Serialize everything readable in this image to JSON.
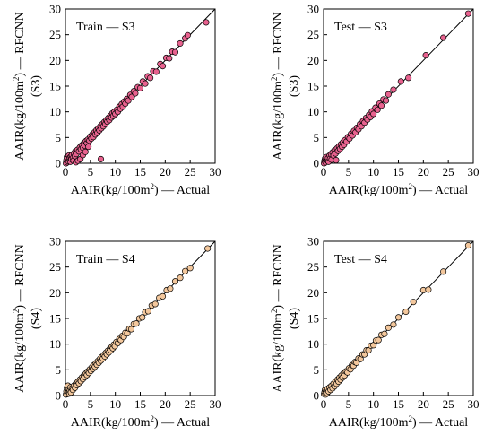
{
  "figure": {
    "ylabel_main": "AAIR(kg/100m",
    "ylabel_sup": "2",
    "ylabel_tail": ") — RFCNN",
    "xlabel_main": "AAIR(kg/100m",
    "xlabel_sup": "2",
    "xlabel_tail": ") — Actual"
  },
  "chart_data": [
    {
      "type": "scatter",
      "title": "Train — S3",
      "ylabel_sub": "(S3)",
      "xlim": [
        0,
        30
      ],
      "ylim": [
        0,
        30
      ],
      "xticks": [
        "0",
        "5",
        "10",
        "15",
        "20",
        "25",
        "30"
      ],
      "yticks": [
        "0",
        "5",
        "10",
        "15",
        "20",
        "25",
        "30"
      ],
      "marker_color": "#e8628f",
      "diagonal": true,
      "points": [
        [
          0.1,
          0.0
        ],
        [
          0.2,
          0.6
        ],
        [
          0.3,
          1.2
        ],
        [
          0.4,
          0.2
        ],
        [
          0.5,
          1.0
        ],
        [
          0.6,
          0.4
        ],
        [
          0.7,
          1.5
        ],
        [
          0.8,
          0.7
        ],
        [
          0.9,
          1.1
        ],
        [
          1.0,
          0.3
        ],
        [
          1.1,
          1.3
        ],
        [
          1.2,
          0.8
        ],
        [
          1.3,
          1.6
        ],
        [
          1.5,
          1.0
        ],
        [
          1.6,
          0.5
        ],
        [
          1.7,
          1.9
        ],
        [
          1.9,
          1.4
        ],
        [
          2.0,
          2.3
        ],
        [
          2.1,
          0.2
        ],
        [
          2.2,
          1.8
        ],
        [
          2.4,
          2.6
        ],
        [
          2.5,
          0.5
        ],
        [
          2.7,
          2.3
        ],
        [
          2.9,
          3.1
        ],
        [
          3.0,
          0.8
        ],
        [
          3.1,
          2.7
        ],
        [
          3.3,
          3.5
        ],
        [
          3.5,
          3.0
        ],
        [
          3.5,
          1.6
        ],
        [
          3.7,
          3.9
        ],
        [
          3.9,
          3.4
        ],
        [
          4.0,
          2.2
        ],
        [
          4.1,
          4.3
        ],
        [
          4.3,
          3.9
        ],
        [
          4.5,
          4.6
        ],
        [
          4.6,
          3.2
        ],
        [
          4.8,
          4.4
        ],
        [
          5.0,
          5.2
        ],
        [
          5.2,
          4.8
        ],
        [
          5.4,
          5.6
        ],
        [
          5.6,
          5.1
        ],
        [
          5.8,
          6.0
        ],
        [
          6.0,
          5.6
        ],
        [
          6.2,
          6.4
        ],
        [
          6.4,
          5.9
        ],
        [
          6.6,
          6.8
        ],
        [
          6.8,
          6.4
        ],
        [
          7.0,
          7.2
        ],
        [
          7.1,
          0.8
        ],
        [
          7.2,
          6.8
        ],
        [
          7.4,
          7.6
        ],
        [
          7.6,
          7.2
        ],
        [
          7.8,
          8.0
        ],
        [
          8.0,
          7.6
        ],
        [
          8.2,
          8.4
        ],
        [
          8.4,
          8.1
        ],
        [
          8.6,
          8.8
        ],
        [
          8.8,
          8.4
        ],
        [
          9.0,
          9.2
        ],
        [
          9.2,
          8.9
        ],
        [
          9.4,
          9.7
        ],
        [
          9.6,
          9.2
        ],
        [
          9.8,
          10.0
        ],
        [
          10.0,
          9.6
        ],
        [
          10.3,
          10.4
        ],
        [
          10.5,
          10.0
        ],
        [
          10.8,
          11.0
        ],
        [
          11.0,
          10.6
        ],
        [
          11.3,
          11.5
        ],
        [
          11.5,
          11.0
        ],
        [
          11.8,
          12.0
        ],
        [
          12.0,
          11.6
        ],
        [
          12.3,
          12.5
        ],
        [
          12.6,
          12.2
        ],
        [
          13.0,
          13.3
        ],
        [
          13.3,
          12.9
        ],
        [
          13.7,
          14.0
        ],
        [
          14.0,
          13.6
        ],
        [
          14.5,
          14.8
        ],
        [
          15.0,
          14.6
        ],
        [
          15.5,
          15.9
        ],
        [
          16.0,
          15.5
        ],
        [
          16.5,
          16.9
        ],
        [
          17.0,
          16.6
        ],
        [
          17.6,
          17.9
        ],
        [
          18.2,
          17.8
        ],
        [
          19.0,
          19.3
        ],
        [
          19.5,
          18.9
        ],
        [
          20.2,
          20.5
        ],
        [
          20.8,
          20.4
        ],
        [
          21.4,
          21.7
        ],
        [
          22.0,
          21.6
        ],
        [
          23.0,
          23.3
        ],
        [
          24.0,
          24.3
        ],
        [
          24.5,
          24.9
        ],
        [
          28.2,
          27.4
        ]
      ]
    },
    {
      "type": "scatter",
      "title": "Test — S3",
      "ylabel_sub": "(S3)",
      "xlim": [
        0,
        30
      ],
      "ylim": [
        0,
        30
      ],
      "xticks": [
        "0",
        "5",
        "10",
        "15",
        "20",
        "25",
        "30"
      ],
      "yticks": [
        "0",
        "5",
        "10",
        "15",
        "20",
        "25",
        "30"
      ],
      "marker_color": "#e8628f",
      "diagonal": true,
      "points": [
        [
          0.1,
          0.0
        ],
        [
          0.2,
          0.5
        ],
        [
          0.3,
          0.9
        ],
        [
          0.4,
          0.2
        ],
        [
          0.5,
          0.8
        ],
        [
          0.6,
          1.2
        ],
        [
          0.8,
          0.5
        ],
        [
          0.9,
          1.0
        ],
        [
          1.0,
          0.3
        ],
        [
          1.2,
          1.5
        ],
        [
          1.3,
          0.9
        ],
        [
          1.5,
          1.8
        ],
        [
          1.6,
          0.7
        ],
        [
          1.8,
          2.1
        ],
        [
          2.0,
          1.5
        ],
        [
          2.2,
          2.5
        ],
        [
          2.4,
          1.9
        ],
        [
          2.5,
          0.6
        ],
        [
          2.7,
          2.9
        ],
        [
          2.9,
          2.4
        ],
        [
          3.1,
          3.3
        ],
        [
          3.3,
          2.8
        ],
        [
          3.5,
          3.7
        ],
        [
          3.7,
          3.2
        ],
        [
          3.9,
          4.1
        ],
        [
          4.1,
          3.6
        ],
        [
          4.3,
          4.5
        ],
        [
          4.6,
          4.2
        ],
        [
          4.9,
          5.1
        ],
        [
          5.2,
          4.8
        ],
        [
          5.5,
          5.7
        ],
        [
          5.8,
          5.4
        ],
        [
          6.1,
          6.3
        ],
        [
          6.4,
          6.0
        ],
        [
          6.7,
          6.9
        ],
        [
          7.0,
          6.6
        ],
        [
          7.3,
          7.6
        ],
        [
          7.6,
          7.2
        ],
        [
          7.9,
          8.2
        ],
        [
          8.2,
          7.9
        ],
        [
          8.5,
          8.8
        ],
        [
          8.8,
          8.5
        ],
        [
          9.1,
          9.4
        ],
        [
          9.4,
          9.0
        ],
        [
          9.7,
          10.1
        ],
        [
          10.0,
          9.6
        ],
        [
          10.4,
          10.8
        ],
        [
          10.8,
          10.4
        ],
        [
          11.2,
          11.6
        ],
        [
          11.6,
          11.2
        ],
        [
          12.0,
          12.4
        ],
        [
          12.5,
          12.2
        ],
        [
          13.0,
          13.4
        ],
        [
          14.0,
          14.3
        ],
        [
          15.5,
          15.9
        ],
        [
          17.0,
          16.6
        ],
        [
          20.5,
          21.0
        ],
        [
          24.0,
          24.4
        ],
        [
          29.0,
          29.1
        ]
      ]
    },
    {
      "type": "scatter",
      "title": "Train — S4",
      "ylabel_sub": "(S4)",
      "xlim": [
        0,
        30
      ],
      "ylim": [
        0,
        30
      ],
      "xticks": [
        "0",
        "5",
        "10",
        "15",
        "20",
        "25",
        "30"
      ],
      "yticks": [
        "0",
        "5",
        "10",
        "15",
        "20",
        "25",
        "30"
      ],
      "marker_color": "#f3c79c",
      "diagonal": true,
      "points": [
        [
          0.1,
          0.2
        ],
        [
          0.2,
          0.8
        ],
        [
          0.3,
          1.5
        ],
        [
          0.4,
          0.3
        ],
        [
          0.5,
          1.9
        ],
        [
          0.6,
          0.7
        ],
        [
          0.7,
          1.2
        ],
        [
          0.8,
          0.4
        ],
        [
          0.9,
          1.0
        ],
        [
          1.0,
          1.6
        ],
        [
          1.1,
          0.6
        ],
        [
          1.3,
          1.4
        ],
        [
          1.5,
          1.1
        ],
        [
          1.7,
          1.9
        ],
        [
          1.9,
          1.5
        ],
        [
          2.1,
          2.3
        ],
        [
          2.3,
          2.0
        ],
        [
          2.5,
          2.7
        ],
        [
          2.7,
          2.4
        ],
        [
          2.9,
          3.1
        ],
        [
          3.1,
          2.8
        ],
        [
          3.3,
          3.5
        ],
        [
          3.5,
          3.2
        ],
        [
          3.7,
          3.9
        ],
        [
          3.9,
          3.6
        ],
        [
          4.1,
          4.3
        ],
        [
          4.3,
          4.0
        ],
        [
          4.5,
          4.7
        ],
        [
          4.7,
          4.4
        ],
        [
          4.9,
          5.1
        ],
        [
          5.1,
          4.8
        ],
        [
          5.3,
          5.5
        ],
        [
          5.5,
          5.2
        ],
        [
          5.7,
          5.9
        ],
        [
          5.9,
          5.6
        ],
        [
          6.1,
          6.3
        ],
        [
          6.3,
          6.0
        ],
        [
          6.5,
          6.7
        ],
        [
          6.7,
          6.4
        ],
        [
          6.9,
          7.1
        ],
        [
          7.1,
          6.8
        ],
        [
          7.3,
          7.5
        ],
        [
          7.5,
          7.2
        ],
        [
          7.7,
          7.9
        ],
        [
          7.9,
          7.6
        ],
        [
          8.1,
          8.3
        ],
        [
          8.3,
          8.0
        ],
        [
          8.5,
          8.7
        ],
        [
          8.7,
          8.4
        ],
        [
          8.9,
          9.1
        ],
        [
          9.1,
          8.8
        ],
        [
          9.3,
          9.5
        ],
        [
          9.5,
          9.2
        ],
        [
          9.7,
          9.9
        ],
        [
          9.9,
          9.6
        ],
        [
          10.2,
          10.4
        ],
        [
          10.5,
          10.2
        ],
        [
          10.8,
          11.0
        ],
        [
          11.1,
          10.8
        ],
        [
          11.4,
          11.6
        ],
        [
          11.7,
          11.4
        ],
        [
          12.0,
          12.2
        ],
        [
          12.4,
          12.1
        ],
        [
          12.8,
          13.0
        ],
        [
          13.2,
          12.9
        ],
        [
          13.7,
          13.9
        ],
        [
          14.2,
          14.0
        ],
        [
          14.8,
          15.0
        ],
        [
          15.4,
          15.2
        ],
        [
          16.0,
          16.2
        ],
        [
          16.6,
          16.4
        ],
        [
          17.3,
          17.5
        ],
        [
          18.0,
          17.8
        ],
        [
          18.8,
          19.0
        ],
        [
          19.5,
          19.3
        ],
        [
          20.3,
          20.5
        ],
        [
          21.0,
          20.8
        ],
        [
          22.0,
          22.2
        ],
        [
          23.0,
          22.9
        ],
        [
          24.0,
          24.2
        ],
        [
          25.0,
          24.8
        ],
        [
          28.5,
          28.6
        ]
      ]
    },
    {
      "type": "scatter",
      "title": "Test — S4",
      "ylabel_sub": "(S4)",
      "xlim": [
        0,
        30
      ],
      "ylim": [
        0,
        30
      ],
      "xticks": [
        "0",
        "5",
        "10",
        "15",
        "20",
        "25",
        "30"
      ],
      "yticks": [
        "0",
        "5",
        "10",
        "15",
        "20",
        "25",
        "30"
      ],
      "marker_color": "#f3c79c",
      "diagonal": true,
      "points": [
        [
          0.1,
          0.3
        ],
        [
          0.2,
          0.7
        ],
        [
          0.3,
          1.1
        ],
        [
          0.4,
          0.2
        ],
        [
          0.5,
          0.9
        ],
        [
          0.7,
          0.5
        ],
        [
          0.8,
          1.3
        ],
        [
          1.0,
          0.8
        ],
        [
          1.2,
          1.6
        ],
        [
          1.4,
          1.1
        ],
        [
          1.6,
          1.9
        ],
        [
          1.8,
          1.4
        ],
        [
          2.0,
          2.3
        ],
        [
          2.2,
          1.8
        ],
        [
          2.4,
          2.7
        ],
        [
          2.6,
          2.3
        ],
        [
          2.8,
          3.1
        ],
        [
          3.0,
          2.7
        ],
        [
          3.2,
          3.5
        ],
        [
          3.4,
          3.1
        ],
        [
          3.6,
          3.9
        ],
        [
          3.8,
          3.5
        ],
        [
          4.0,
          4.3
        ],
        [
          4.2,
          3.9
        ],
        [
          4.5,
          4.7
        ],
        [
          4.8,
          4.5
        ],
        [
          5.1,
          5.3
        ],
        [
          5.4,
          5.1
        ],
        [
          5.7,
          5.9
        ],
        [
          6.0,
          5.8
        ],
        [
          6.3,
          6.5
        ],
        [
          6.6,
          6.4
        ],
        [
          7.0,
          7.2
        ],
        [
          7.4,
          7.1
        ],
        [
          7.8,
          8.0
        ],
        [
          8.2,
          8.0
        ],
        [
          8.6,
          8.8
        ],
        [
          9.0,
          8.8
        ],
        [
          9.5,
          9.7
        ],
        [
          10.0,
          9.8
        ],
        [
          10.5,
          10.7
        ],
        [
          11.0,
          10.8
        ],
        [
          11.6,
          11.8
        ],
        [
          12.2,
          12.0
        ],
        [
          13.0,
          13.2
        ],
        [
          14.0,
          13.8
        ],
        [
          15.0,
          15.2
        ],
        [
          16.5,
          16.3
        ],
        [
          18.0,
          18.2
        ],
        [
          20.0,
          20.5
        ],
        [
          21.0,
          20.6
        ],
        [
          24.0,
          24.1
        ],
        [
          29.0,
          29.2
        ]
      ]
    }
  ]
}
